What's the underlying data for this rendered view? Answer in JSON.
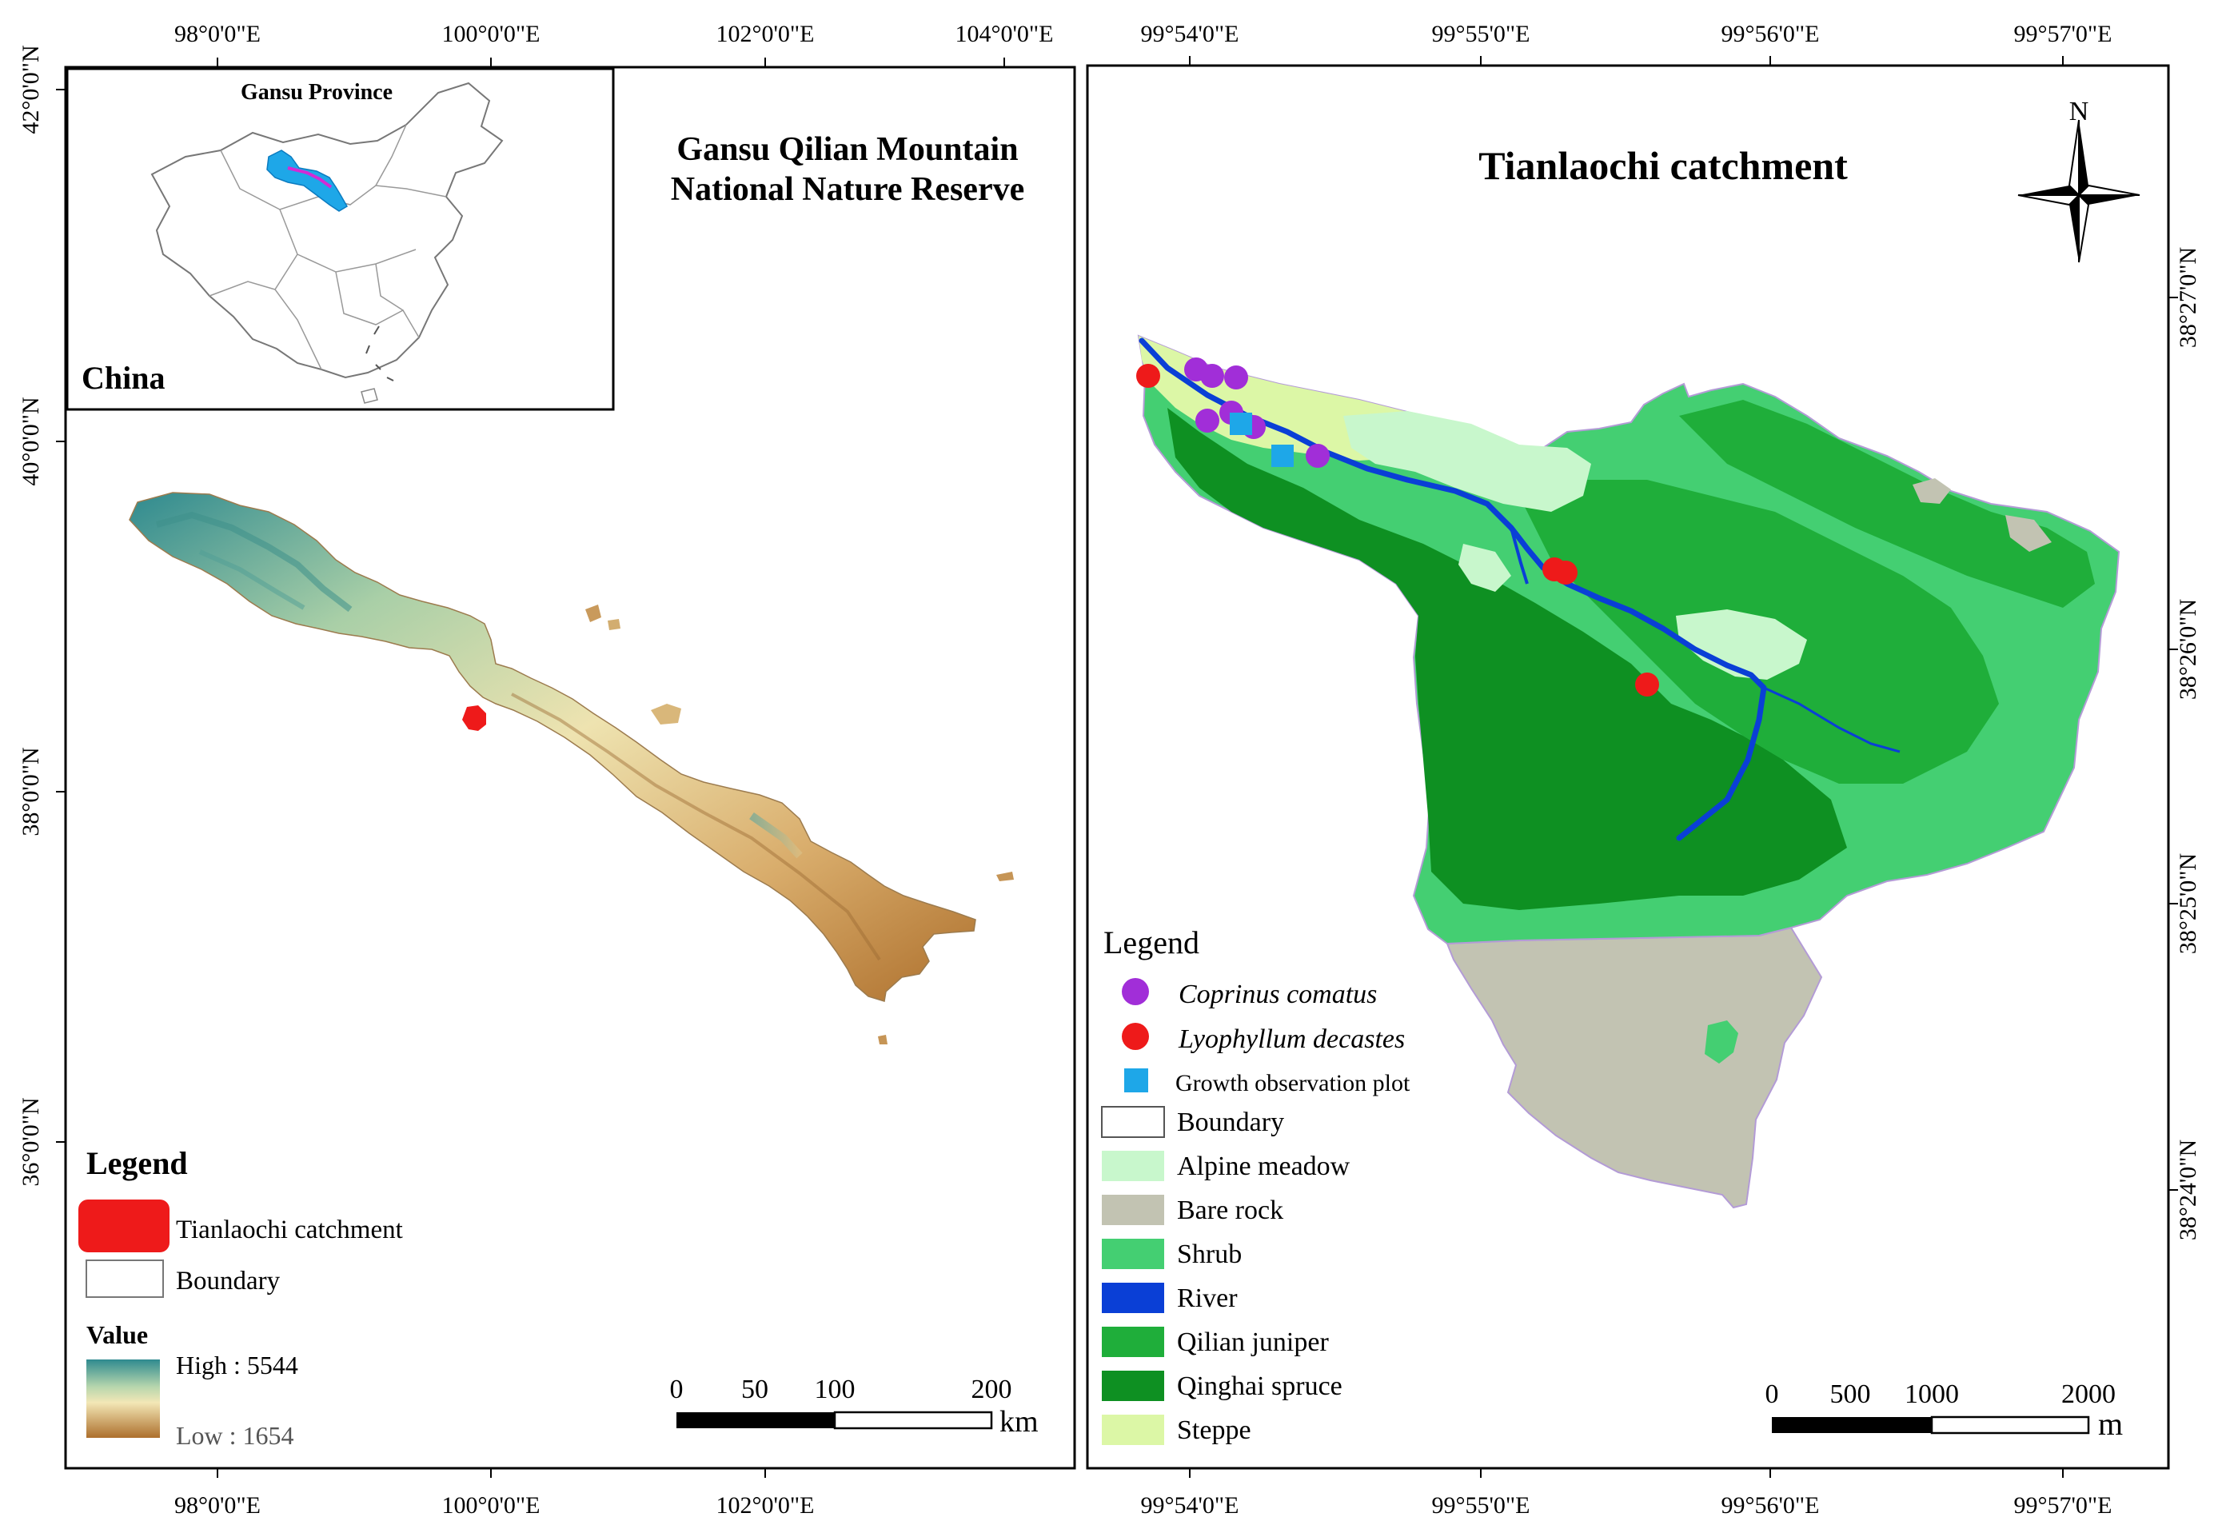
{
  "left_panel": {
    "title_line1": "Gansu Qilian Mountain",
    "title_line2": "National Nature Reserve",
    "top_ticks": [
      "98°0'0\"E",
      "100°0'0\"E",
      "102°0'0\"E",
      "104°0'0\"E"
    ],
    "bottom_ticks": [
      "98°0'0\"E",
      "100°0'0\"E",
      "102°0'0\"E"
    ],
    "left_ticks": [
      "42°0'0\"N",
      "40°0'0\"N",
      "38°0'0\"N",
      "36°0'0\"N"
    ],
    "inset": {
      "title": "Gansu Province",
      "country": "China"
    },
    "legend": {
      "title": "Legend",
      "catchment_label": "Tianlaochi catchment",
      "boundary_label": "Boundary",
      "value_title": "Value",
      "high_label": "High : 5544",
      "low_label": "Low  :  1654"
    },
    "scalebar": {
      "ticks": [
        "0",
        "50",
        "100",
        "200"
      ],
      "unit": "km"
    }
  },
  "right_panel": {
    "title": "Tianlaochi catchment",
    "north_label": "N",
    "top_ticks": [
      "99°54'0\"E",
      "99°55'0\"E",
      "99°56'0\"E",
      "99°57'0\"E"
    ],
    "bottom_ticks": [
      "99°54'0\"E",
      "99°55'0\"E",
      "99°56'0\"E",
      "99°57'0\"E"
    ],
    "right_ticks": [
      "38°27'0\"N",
      "38°26'0\"N",
      "38°25'0\"N",
      "38°24'0\"N"
    ],
    "legend": {
      "title": "Legend",
      "coprinus": "Coprinus comatus",
      "lyophyllum": "Lyophyllum decastes",
      "plot": "Growth observation plot",
      "items": [
        {
          "label": "Boundary",
          "color": "#ffffff"
        },
        {
          "label": "Alpine meadow",
          "color": "#c8f7cc"
        },
        {
          "label": "Bare rock",
          "color": "#c2c3b2"
        },
        {
          "label": "Shrub",
          "color": "#44cf72"
        },
        {
          "label": "River",
          "color": "#0a3fd6"
        },
        {
          "label": " Qilian juniper",
          "color": "#1fae3a"
        },
        {
          "label": "Qinghai spruce",
          "color": "#0e9022"
        },
        {
          "label": "Steppe",
          "color": "#dcf7a6"
        }
      ]
    },
    "scalebar": {
      "ticks": [
        "0",
        "500",
        "1000",
        "2000"
      ],
      "unit": "m"
    }
  },
  "colors": {
    "coprinus": "#a12ed8",
    "lyophyllum": "#ee1a1a",
    "plot": "#1ea7e8",
    "catchment": "#ee1a1a"
  }
}
